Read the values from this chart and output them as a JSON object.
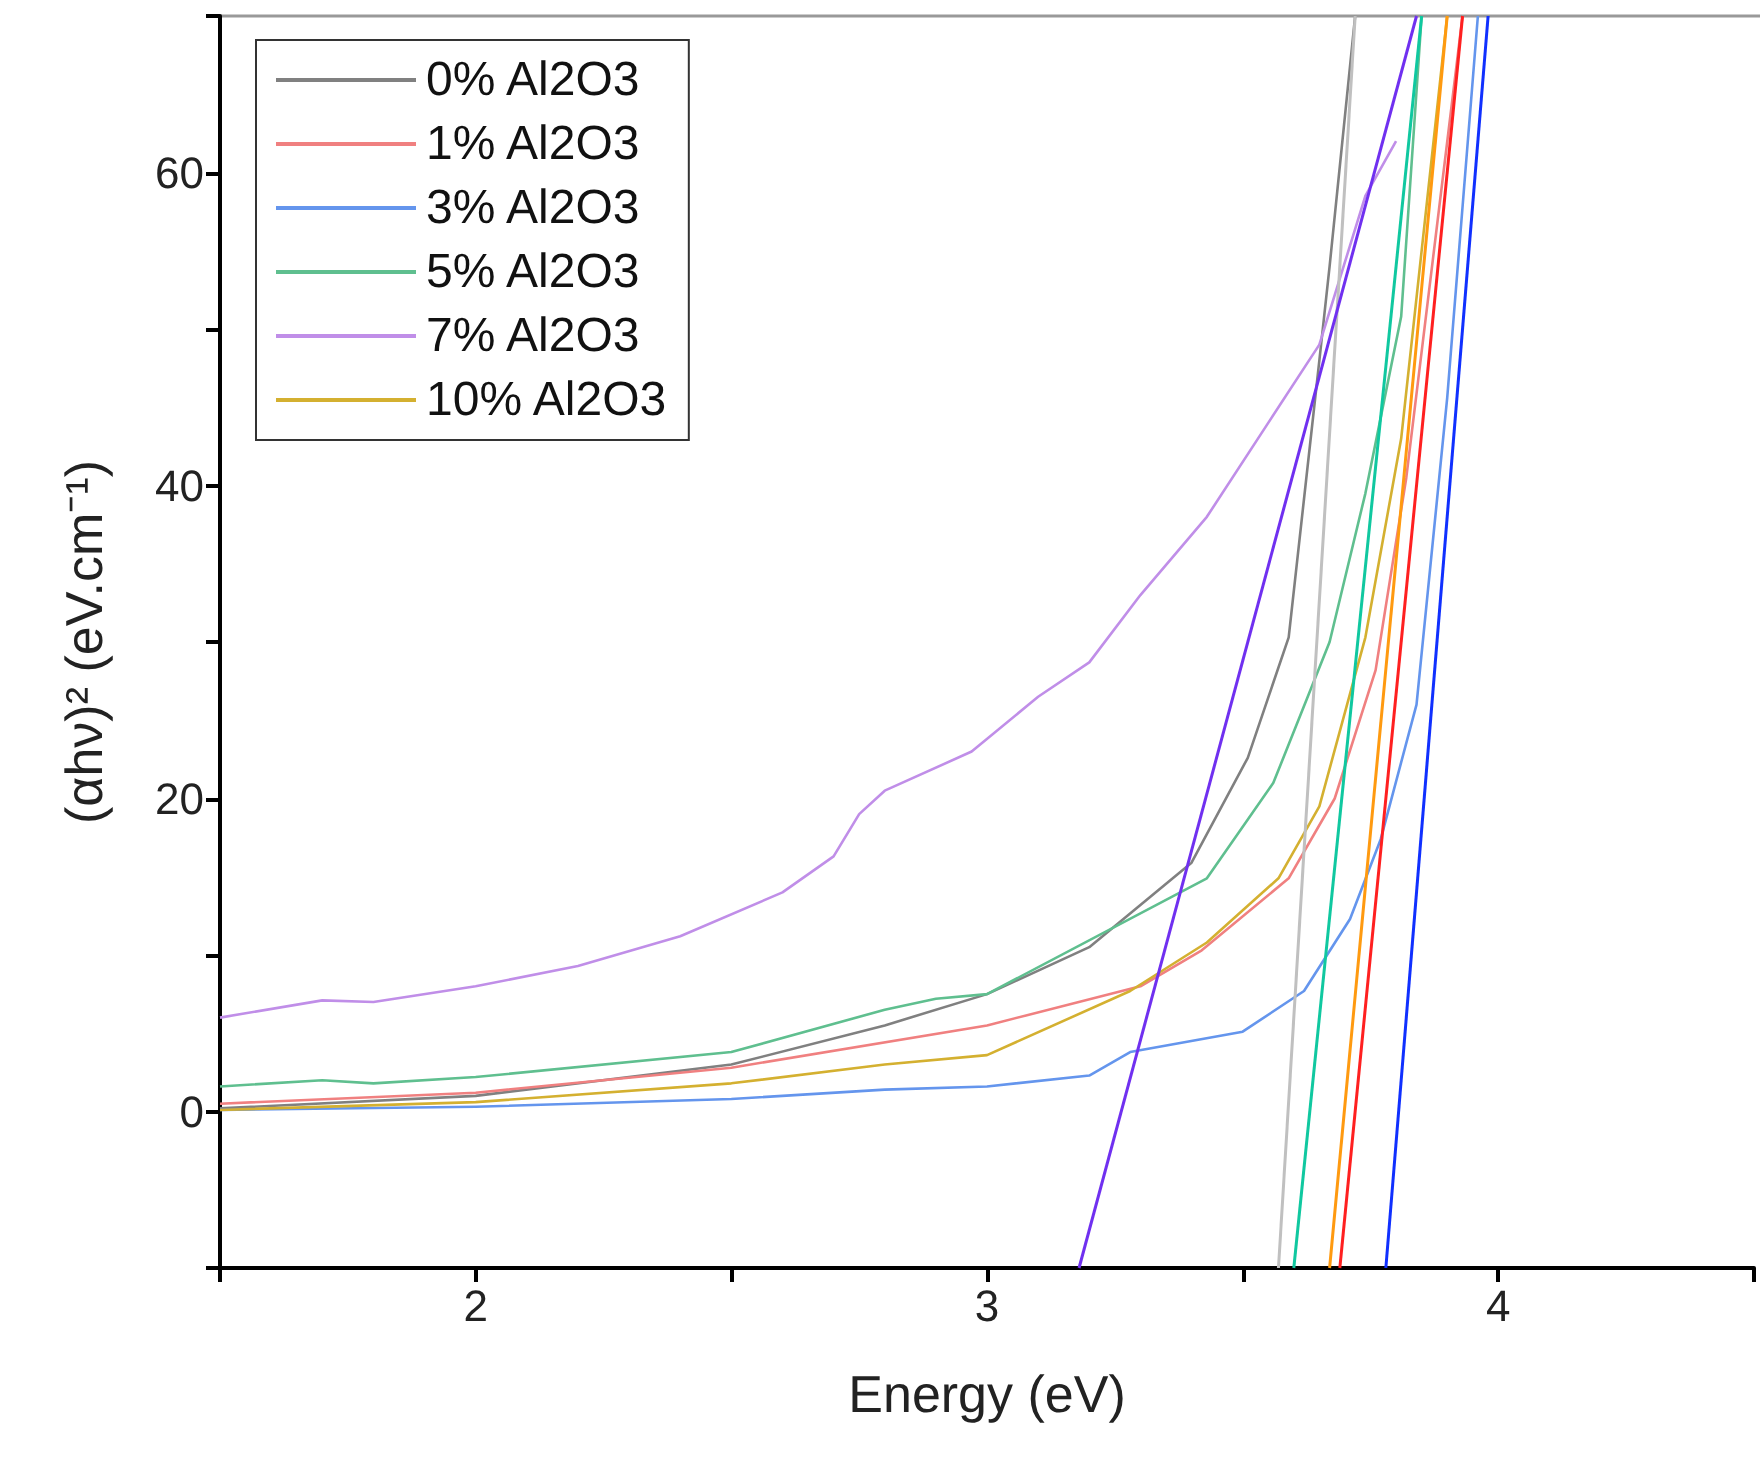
{
  "chart_data": {
    "type": "line",
    "xlabel": "Energy (eV)",
    "ylabel": "(αhν)² (eV.cm⁻¹)",
    "xlim": [
      1.5,
      4.5
    ],
    "xticks": [
      {
        "value": 1.5,
        "label": null
      },
      2,
      {
        "value": 2.5,
        "label": null
      },
      3,
      {
        "value": 3.5,
        "label": null
      },
      4,
      {
        "value": 4.5,
        "label": null
      }
    ],
    "ylim": [
      -10,
      70
    ],
    "yticks": [
      {
        "value": -10,
        "label": null
      },
      0,
      {
        "value": 10,
        "label": null
      },
      20,
      {
        "value": 30,
        "label": null
      },
      40,
      {
        "value": 50,
        "label": null
      },
      60,
      {
        "value": 70,
        "label": null
      }
    ],
    "grid": false,
    "legend": "top left",
    "marker": "none",
    "line_style": "solid",
    "series": [
      {
        "name": "0% Al2O3",
        "color": "#808080",
        "x": [
          1.5,
          2.0,
          2.5,
          2.8,
          3.0,
          3.2,
          3.4,
          3.51,
          3.59,
          3.65,
          3.67,
          3.72
        ],
        "values": [
          0.2,
          1,
          3,
          5.5,
          7.5,
          10.5,
          15.9,
          22.6,
          30.3,
          48,
          54,
          70
        ]
      },
      {
        "name": "1% Al2O3",
        "color": "#f08080",
        "x": [
          1.5,
          2.0,
          2.5,
          3.0,
          3.3,
          3.42,
          3.59,
          3.68,
          3.76,
          3.82,
          3.93
        ],
        "values": [
          0.5,
          1.2,
          2.8,
          5.5,
          8,
          10.3,
          14.9,
          20,
          28.2,
          40.5,
          70
        ]
      },
      {
        "name": "3% Al2O3",
        "color": "#6495ed",
        "x": [
          1.5,
          2.0,
          2.5,
          2.8,
          3.0,
          3.2,
          3.28,
          3.5,
          3.62,
          3.71,
          3.77,
          3.84,
          3.9,
          3.96
        ],
        "values": [
          0.1,
          0.3,
          0.8,
          1.4,
          1.6,
          2.3,
          3.8,
          5.1,
          7.7,
          12.3,
          17.4,
          26,
          45.6,
          70
        ]
      },
      {
        "name": "5% Al2O3",
        "color": "#5fbf8f",
        "x": [
          1.5,
          1.7,
          1.8,
          2.0,
          2.5,
          2.8,
          2.9,
          3.0,
          3.43,
          3.56,
          3.67,
          3.74,
          3.81,
          3.85
        ],
        "values": [
          1.6,
          2,
          1.8,
          2.2,
          3.8,
          6.5,
          7.2,
          7.5,
          14.9,
          21,
          30,
          39.5,
          50.8,
          70
        ]
      },
      {
        "name": "7% Al2O3",
        "color": "#c08ee8",
        "x": [
          1.5,
          1.7,
          1.8,
          2.0,
          2.2,
          2.4,
          2.6,
          2.7,
          2.75,
          2.8,
          2.97,
          3.1,
          3.2,
          3.3,
          3.43,
          3.55,
          3.65,
          3.74,
          3.8
        ],
        "values": [
          6,
          7.1,
          7,
          8,
          9.3,
          11.2,
          14,
          16.3,
          19,
          20.5,
          23,
          26.5,
          28.7,
          33,
          38,
          44,
          49,
          58.5,
          62
        ]
      },
      {
        "name": "10% Al2O3",
        "color": "#d4b030",
        "x": [
          1.5,
          2.0,
          2.5,
          2.8,
          3.0,
          3.28,
          3.43,
          3.57,
          3.65,
          3.74,
          3.81,
          3.9
        ],
        "values": [
          0.1,
          0.6,
          1.8,
          3,
          3.6,
          7.7,
          10.8,
          14.9,
          19.5,
          30.3,
          43,
          70
        ]
      },
      {
        "color": "#c0c0c0",
        "x": [
          3.57,
          3.72
        ],
        "values": [
          -10,
          70
        ]
      },
      {
        "color": "#ff2020",
        "x": [
          3.69,
          3.93
        ],
        "values": [
          -10,
          70
        ]
      },
      {
        "color": "#1030ff",
        "x": [
          3.78,
          3.98
        ],
        "values": [
          -10,
          70
        ]
      },
      {
        "color": "#10c8a0",
        "x": [
          3.6,
          3.85
        ],
        "values": [
          -10,
          70
        ]
      },
      {
        "color": "#7030f0",
        "x": [
          3.18,
          3.84
        ],
        "values": [
          -10,
          70
        ]
      },
      {
        "color": "#ff9a10",
        "x": [
          3.67,
          3.9
        ],
        "values": [
          -10,
          70
        ]
      }
    ]
  }
}
